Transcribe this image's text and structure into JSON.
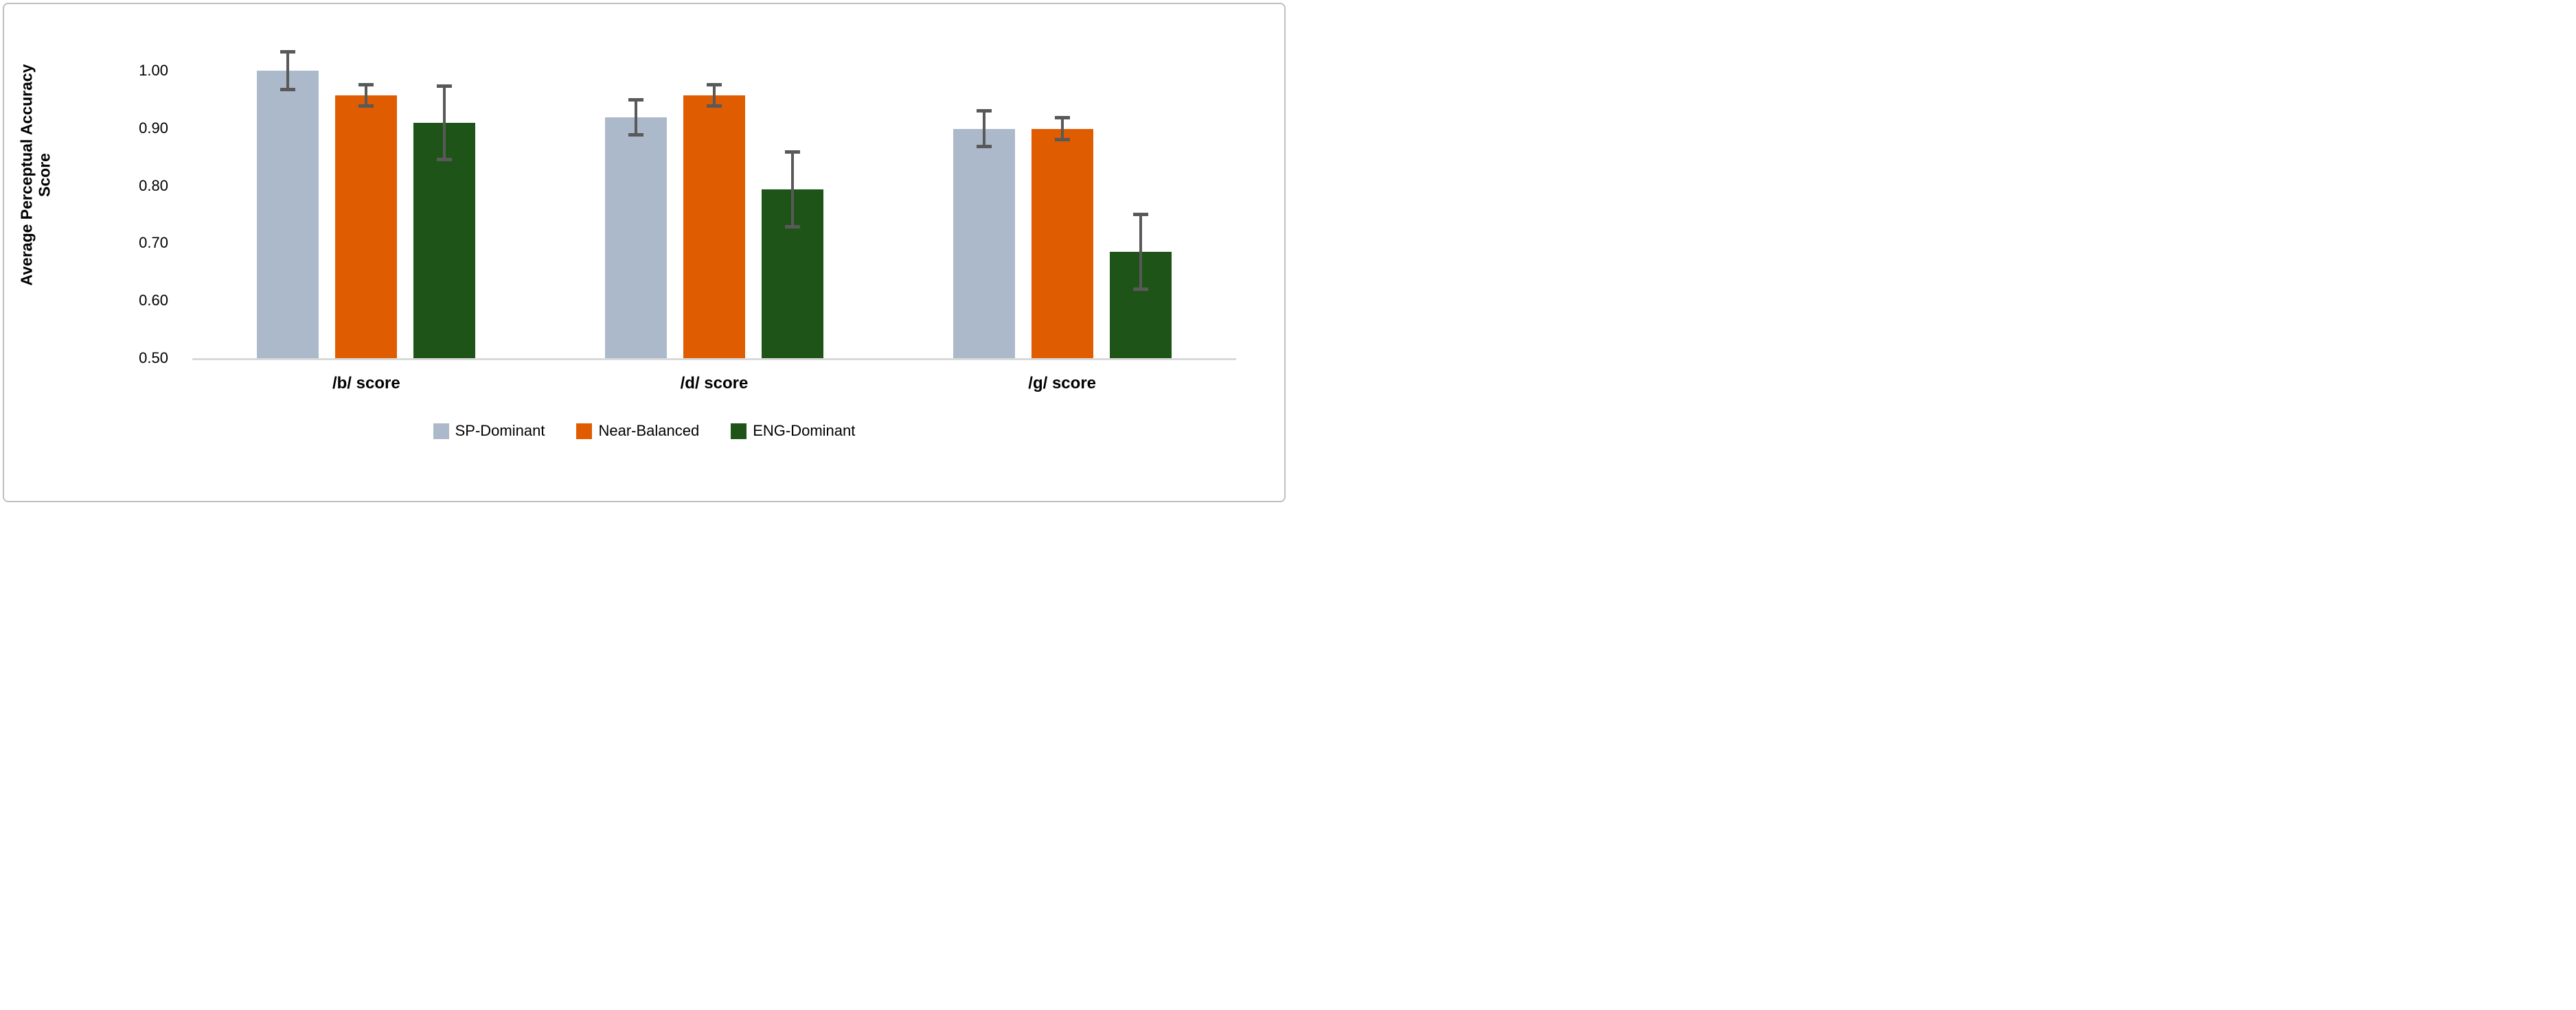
{
  "figure": {
    "background": "#FFFFFF",
    "border_color": "#BFBFBF"
  },
  "chart_data": {
    "type": "bar",
    "title": "",
    "categories": [
      "/b/ score",
      "/d/ score",
      "/g/ score"
    ],
    "series": [
      {
        "name": "SP-Dominant",
        "color": "#ACB9CA",
        "values": [
          1.0,
          0.919,
          0.899
        ],
        "errors": [
          0.033,
          0.03,
          0.031
        ]
      },
      {
        "name": "Near-Balanced",
        "color": "#E05C00",
        "values": [
          0.957,
          0.957,
          0.899
        ],
        "errors": [
          0.019,
          0.019,
          0.019
        ]
      },
      {
        "name": "ENG-Dominant",
        "color": "#1E5418",
        "values": [
          0.909,
          0.794,
          0.685
        ],
        "errors": [
          0.064,
          0.065,
          0.065
        ]
      }
    ],
    "ylabel": "Average Perceptual Accuracy Score",
    "ylim": [
      0.5,
      1.0
    ],
    "yticks": [
      1.0,
      0.9,
      0.8,
      0.7,
      0.6,
      0.5
    ],
    "ytick_format": "2dp",
    "grid": false,
    "legend_position": "bottom",
    "error_bar_color": "#595959",
    "axis_line_color": "#D9D9D9"
  }
}
